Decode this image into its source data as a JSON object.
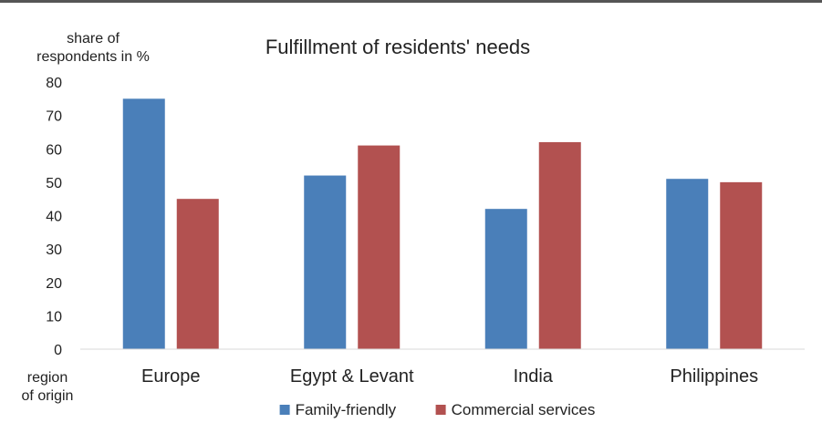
{
  "chart_data": {
    "type": "bar",
    "title": "Fulfillment of residents' needs",
    "ylabel": [
      "share of",
      "respondents in %"
    ],
    "xlabel": [
      "region",
      "of origin"
    ],
    "categories": [
      "Europe",
      "Egypt & Levant",
      "India",
      "Philippines"
    ],
    "series": [
      {
        "name": "Family-friendly",
        "color": "#4a7fb9",
        "values": [
          75,
          52,
          42,
          51
        ]
      },
      {
        "name": "Commercial services",
        "color": "#b25150",
        "values": [
          45,
          61,
          62,
          50
        ]
      }
    ],
    "ylim": [
      0,
      80
    ],
    "yticks": [
      0,
      10,
      20,
      30,
      40,
      50,
      60,
      70,
      80
    ],
    "grid": false,
    "legend_position": "bottom"
  }
}
